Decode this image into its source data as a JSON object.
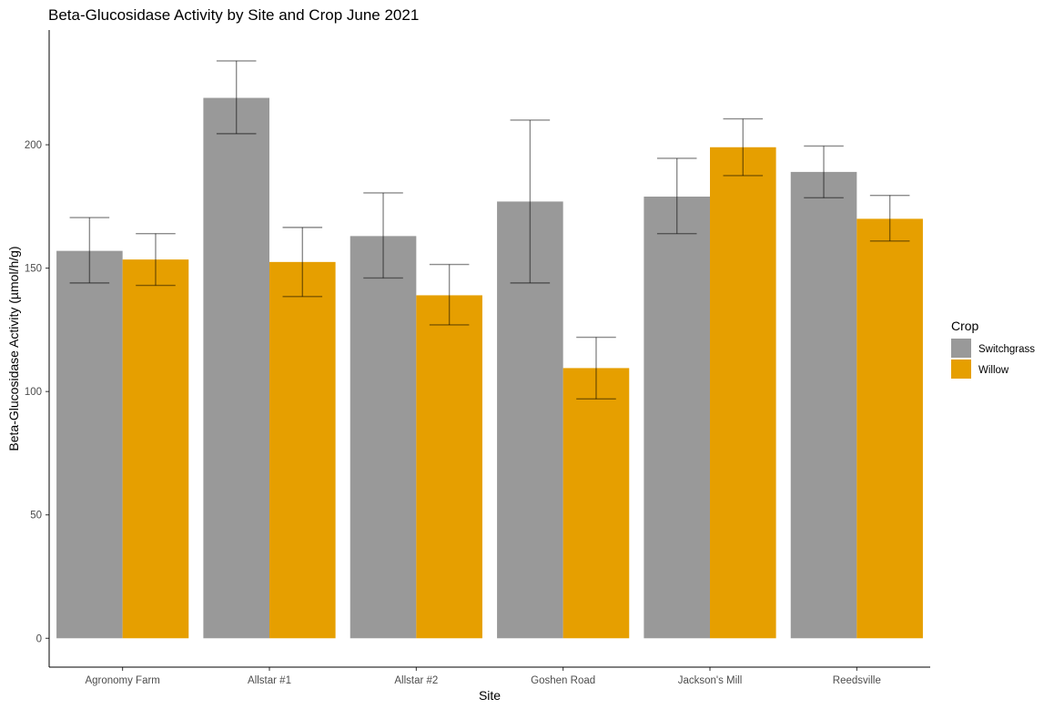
{
  "chart_data": {
    "type": "bar",
    "title": "Beta-Glucosidase Activity by Site and Crop June 2021",
    "xlabel": "Site",
    "ylabel": "Beta-Glucosidase Activity (µmol/h/g)",
    "categories": [
      "Agronomy Farm",
      "Allstar #1",
      "Allstar #2",
      "Goshen Road",
      "Jackson's Mill",
      "Reedsville"
    ],
    "yticks": [
      0,
      50,
      100,
      150,
      200
    ],
    "ylim": [
      -11.7,
      246.5
    ],
    "grid": false,
    "legend": {
      "title": "Crop",
      "position": "right"
    },
    "series": [
      {
        "name": "Switchgrass",
        "color": "#999999",
        "values": [
          157,
          219,
          163,
          177,
          179,
          189
        ],
        "error_low": [
          144,
          204.5,
          146,
          144,
          164,
          178.5
        ],
        "error_high": [
          170.5,
          234,
          180.5,
          210,
          194.5,
          199.5
        ]
      },
      {
        "name": "Willow",
        "color": "#E69F00",
        "values": [
          153.5,
          152.5,
          139,
          109.5,
          199,
          170
        ],
        "error_low": [
          143,
          138.5,
          127,
          97,
          187.5,
          161
        ],
        "error_high": [
          164,
          166.5,
          151.5,
          122,
          210.5,
          179.5
        ]
      }
    ]
  }
}
